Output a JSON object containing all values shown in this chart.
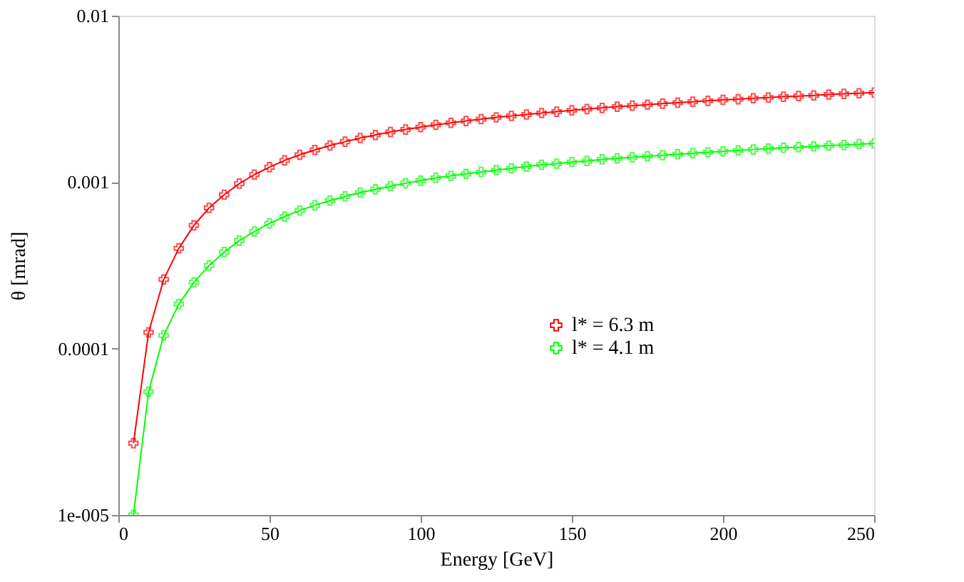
{
  "chart_data": {
    "type": "line",
    "xlabel": "Energy [GeV]",
    "ylabel": "θ [mrad]",
    "x": [
      5,
      10,
      15,
      20,
      25,
      30,
      35,
      40,
      45,
      50,
      55,
      60,
      65,
      70,
      75,
      80,
      85,
      90,
      95,
      100,
      105,
      110,
      115,
      120,
      125,
      130,
      135,
      140,
      145,
      150,
      155,
      160,
      165,
      170,
      175,
      180,
      185,
      190,
      195,
      200,
      205,
      210,
      215,
      220,
      225,
      230,
      235,
      240,
      245,
      250
    ],
    "series": [
      {
        "name": "l* = 6.3 m",
        "color": "#ff0000",
        "values": [
          2.7e-05,
          0.000125,
          0.00026,
          0.0004,
          0.00055,
          0.0007,
          0.00084,
          0.00098,
          0.00111,
          0.00123,
          0.00135,
          0.00146,
          0.00156,
          0.00166,
          0.00175,
          0.00184,
          0.00192,
          0.002,
          0.00207,
          0.00214,
          0.00221,
          0.00227,
          0.00233,
          0.00239,
          0.00245,
          0.0025,
          0.00255,
          0.0026,
          0.00265,
          0.0027,
          0.00275,
          0.00279,
          0.00284,
          0.00288,
          0.00292,
          0.00296,
          0.003,
          0.00304,
          0.00308,
          0.00312,
          0.00315,
          0.00319,
          0.00322,
          0.00326,
          0.00329,
          0.00332,
          0.00336,
          0.00339,
          0.00342,
          0.00345
        ]
      },
      {
        "name": "l* = 4.1 m",
        "color": "#00ff00",
        "values": [
          1e-05,
          5.5e-05,
          0.00012,
          0.000185,
          0.00025,
          0.000315,
          0.00038,
          0.000445,
          0.000505,
          0.000565,
          0.00062,
          0.000675,
          0.000725,
          0.000775,
          0.00082,
          0.000865,
          0.000905,
          0.000945,
          0.000985,
          0.00102,
          0.00106,
          0.00109,
          0.00112,
          0.00115,
          0.00118,
          0.00121,
          0.00124,
          0.00127,
          0.00129,
          0.00132,
          0.00134,
          0.00137,
          0.00139,
          0.00141,
          0.00143,
          0.00145,
          0.00147,
          0.00149,
          0.00151,
          0.00153,
          0.00155,
          0.00157,
          0.00159,
          0.00161,
          0.00162,
          0.00164,
          0.00166,
          0.00167,
          0.00169,
          0.00171
        ]
      }
    ],
    "xlim": [
      0,
      250
    ],
    "xticks": [
      0,
      50,
      100,
      150,
      200,
      250
    ],
    "ylim": [
      1e-05,
      0.01
    ],
    "yticks": [
      {
        "value": 1e-05,
        "label": "1e-005"
      },
      0.0001,
      0.001,
      0.01
    ],
    "log": "y",
    "grid": false,
    "legend": "right",
    "marker": "cross",
    "line_style": "solid"
  }
}
